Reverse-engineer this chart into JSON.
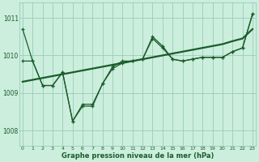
{
  "title": "Graphe pression niveau de la mer (hPa)",
  "bg_color": "#cceedd",
  "grid_color": "#99ccbb",
  "line_color": "#1a5c2a",
  "x_ticks": [
    0,
    1,
    2,
    3,
    4,
    5,
    6,
    7,
    8,
    9,
    10,
    11,
    12,
    13,
    14,
    15,
    16,
    17,
    18,
    19,
    20,
    21,
    22,
    23
  ],
  "y_ticks": [
    1008,
    1009,
    1010,
    1011
  ],
  "ylim": [
    1007.6,
    1011.4
  ],
  "xlim": [
    -0.3,
    23.3
  ],
  "series1_y": [
    1010.7,
    1009.85,
    1009.2,
    1009.2,
    1009.55,
    1008.25,
    1008.7,
    1008.7,
    1009.25,
    1009.7,
    1009.85,
    1009.85,
    1009.9,
    1010.5,
    1010.25,
    1009.9,
    1009.85,
    1009.9,
    1009.95,
    1009.95,
    1009.95,
    1010.1,
    1010.2,
    1011.1
  ],
  "series2_y": [
    1009.85,
    1009.85,
    1009.2,
    1009.2,
    1009.55,
    1008.25,
    1008.65,
    1008.65,
    1009.25,
    1009.65,
    1009.8,
    1009.85,
    1009.9,
    1010.45,
    1010.2,
    1009.9,
    1009.85,
    1009.9,
    1009.95,
    1009.95,
    1009.95,
    1010.1,
    1010.2,
    1011.1
  ],
  "series3_y": [
    1009.3,
    1009.35,
    1009.4,
    1009.45,
    1009.5,
    1009.55,
    1009.6,
    1009.65,
    1009.7,
    1009.75,
    1009.8,
    1009.85,
    1009.9,
    1009.95,
    1010.0,
    1010.05,
    1010.1,
    1010.15,
    1010.2,
    1010.25,
    1010.3,
    1010.38,
    1010.45,
    1010.7
  ]
}
